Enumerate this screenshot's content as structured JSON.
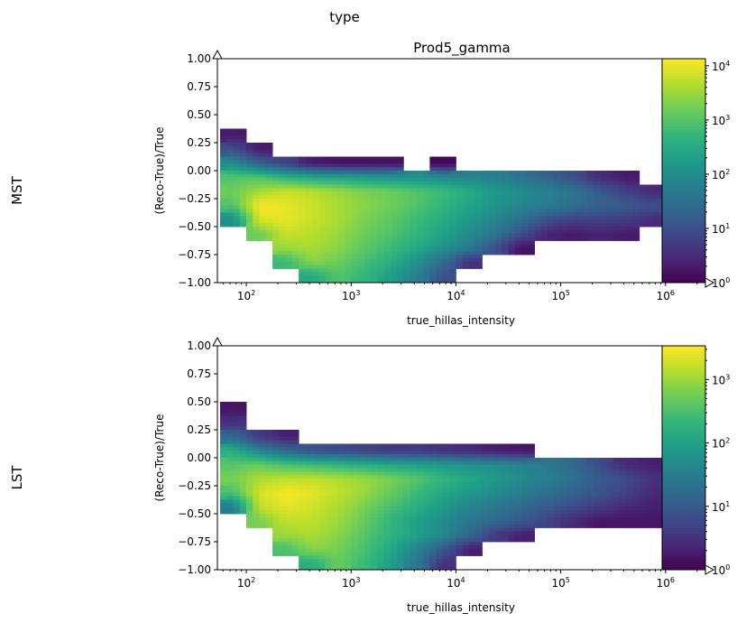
{
  "figure": {
    "suptitle": "type"
  },
  "chart_data": [
    {
      "type": "heatmap",
      "row_label": "MST",
      "title": "Prod5_gamma",
      "xlabel": "true_hillas_intensity",
      "ylabel": "(Reco-True)/True",
      "xscale": "log",
      "xlim": [
        53,
        2400000
      ],
      "ylim": [
        -1.0,
        1.0
      ],
      "x_tick_exponents": [
        2,
        3,
        4,
        5,
        6
      ],
      "y_ticks": [
        "1.00",
        "0.75",
        "0.50",
        "0.25",
        "0.00",
        "−0.25",
        "−0.50",
        "−0.75",
        "−1.00"
      ],
      "y_tick_values": [
        1.0,
        0.75,
        0.5,
        0.25,
        0.0,
        -0.25,
        -0.5,
        -0.75,
        -1.0
      ],
      "colorbar": {
        "scale": "log",
        "range": [
          1,
          13500
        ],
        "tick_exponents": [
          0,
          1,
          2,
          3,
          4
        ],
        "colormap": "viridis"
      },
      "x_bin_log10_edges": [
        1.75,
        6.0
      ],
      "y_edges_top_down": [
        0.375,
        0.25,
        0.125,
        0.0,
        -0.125,
        -0.25,
        -0.375,
        -0.5,
        -0.625,
        -0.75,
        -0.875,
        -1.0
      ],
      "log10_counts": [
        [
          0.3,
          null,
          null,
          null,
          null,
          null,
          null,
          null,
          null,
          null,
          null,
          null,
          null,
          null,
          null,
          null,
          null
        ],
        [
          1.0,
          0.3,
          null,
          null,
          null,
          null,
          null,
          null,
          null,
          null,
          null,
          null,
          null,
          null,
          null,
          null,
          null
        ],
        [
          2.0,
          1.3,
          0.8,
          0.3,
          0.2,
          0.2,
          0.2,
          null,
          0.1,
          null,
          null,
          null,
          null,
          null,
          null,
          null,
          null
        ],
        [
          3.0,
          3.0,
          2.7,
          2.5,
          2.4,
          2.3,
          2.2,
          2.1,
          2.0,
          1.9,
          1.8,
          1.6,
          1.3,
          1.0,
          0.5,
          0.3,
          null
        ],
        [
          3.2,
          3.6,
          3.8,
          3.7,
          3.5,
          3.3,
          3.2,
          3.0,
          2.8,
          2.5,
          2.2,
          2.0,
          1.8,
          1.6,
          1.2,
          0.8,
          0.5
        ],
        [
          3.0,
          4.1,
          4.0,
          3.8,
          3.6,
          3.4,
          3.2,
          3.0,
          2.7,
          2.4,
          2.1,
          1.9,
          1.7,
          1.5,
          1.3,
          1.2,
          1.0
        ],
        [
          2.0,
          3.9,
          4.0,
          3.8,
          3.6,
          3.3,
          3.1,
          2.8,
          2.5,
          2.2,
          1.9,
          1.5,
          1.0,
          0.8,
          0.8,
          0.7,
          0.5
        ],
        [
          null,
          3.2,
          3.8,
          3.7,
          3.5,
          3.2,
          3.0,
          2.7,
          2.4,
          2.0,
          1.6,
          1.0,
          0.4,
          0.3,
          0.4,
          0.3,
          null
        ],
        [
          null,
          null,
          3.5,
          3.6,
          3.4,
          3.1,
          2.8,
          2.5,
          2.1,
          1.7,
          1.0,
          0.2,
          null,
          null,
          null,
          null,
          null
        ],
        [
          null,
          null,
          2.8,
          3.4,
          3.2,
          2.9,
          2.6,
          2.1,
          1.5,
          0.6,
          null,
          null,
          null,
          null,
          null,
          null,
          null
        ],
        [
          null,
          null,
          null,
          2.5,
          3.0,
          2.7,
          2.3,
          1.8,
          1.0,
          null,
          null,
          null,
          null,
          null,
          null,
          null,
          null
        ]
      ]
    },
    {
      "type": "heatmap",
      "row_label": "LST",
      "title": "",
      "xlabel": "true_hillas_intensity",
      "ylabel": "(Reco-True)/True",
      "xscale": "log",
      "xlim": [
        53,
        2400000
      ],
      "ylim": [
        -1.0,
        1.0
      ],
      "x_tick_exponents": [
        2,
        3,
        4,
        5,
        6
      ],
      "y_ticks": [
        "1.00",
        "0.75",
        "0.50",
        "0.25",
        "0.00",
        "−0.25",
        "−0.50",
        "−0.75",
        "−1.00"
      ],
      "y_tick_values": [
        1.0,
        0.75,
        0.5,
        0.25,
        0.0,
        -0.25,
        -0.5,
        -0.75,
        -1.0
      ],
      "colorbar": {
        "scale": "log",
        "range": [
          1,
          3400
        ],
        "tick_exponents": [
          0,
          1,
          2,
          3
        ],
        "colormap": "viridis"
      },
      "x_bin_log10_edges": [
        1.75,
        6.0
      ],
      "y_edges_top_down": [
        0.5,
        0.375,
        0.25,
        0.125,
        0.0,
        -0.125,
        -0.25,
        -0.375,
        -0.5,
        -0.625,
        -0.75,
        -0.875,
        -1.0
      ],
      "log10_counts": [
        [
          0.2,
          null,
          null,
          null,
          null,
          null,
          null,
          null,
          null,
          null,
          null,
          null,
          null,
          null,
          null,
          null,
          null
        ],
        [
          0.5,
          null,
          null,
          null,
          null,
          null,
          null,
          null,
          null,
          null,
          null,
          null,
          null,
          null,
          null,
          null,
          null
        ],
        [
          1.2,
          0.6,
          0.3,
          null,
          null,
          null,
          null,
          null,
          null,
          null,
          null,
          null,
          null,
          null,
          null,
          null,
          null
        ],
        [
          2.2,
          1.6,
          1.2,
          0.9,
          0.8,
          0.7,
          0.6,
          0.6,
          0.5,
          0.4,
          0.3,
          0.2,
          null,
          null,
          null,
          null,
          null
        ],
        [
          2.6,
          2.7,
          2.5,
          2.4,
          2.3,
          2.2,
          2.1,
          2.0,
          1.9,
          1.8,
          1.7,
          1.6,
          1.4,
          1.2,
          0.8,
          0.4,
          0.3
        ],
        [
          2.8,
          3.1,
          3.2,
          3.2,
          3.1,
          3.0,
          2.8,
          2.6,
          2.3,
          2.1,
          1.9,
          1.7,
          1.5,
          1.3,
          1.0,
          0.8,
          0.5
        ],
        [
          2.5,
          3.3,
          3.5,
          3.4,
          3.2,
          3.0,
          2.7,
          2.4,
          2.1,
          1.9,
          1.7,
          1.5,
          1.3,
          1.1,
          0.9,
          0.7,
          0.4
        ],
        [
          1.5,
          3.2,
          3.4,
          3.3,
          3.1,
          2.8,
          2.5,
          2.2,
          1.9,
          1.6,
          1.4,
          1.2,
          1.0,
          0.8,
          0.6,
          0.4,
          0.3
        ],
        [
          null,
          2.8,
          3.2,
          3.2,
          3.0,
          2.7,
          2.3,
          2.0,
          1.7,
          1.4,
          1.2,
          1.0,
          0.7,
          0.4,
          0.2,
          0.2,
          0.2
        ],
        [
          null,
          null,
          3.0,
          3.1,
          2.9,
          2.6,
          2.3,
          2.0,
          1.7,
          1.2,
          0.6,
          0.3,
          null,
          null,
          null,
          null,
          null
        ],
        [
          null,
          null,
          2.5,
          2.9,
          2.8,
          2.5,
          2.1,
          1.6,
          1.0,
          0.3,
          null,
          null,
          null,
          null,
          null,
          null,
          null
        ],
        [
          null,
          null,
          null,
          2.2,
          2.7,
          2.4,
          2.0,
          1.4,
          0.5,
          null,
          null,
          null,
          null,
          null,
          null,
          null,
          null
        ]
      ]
    }
  ]
}
